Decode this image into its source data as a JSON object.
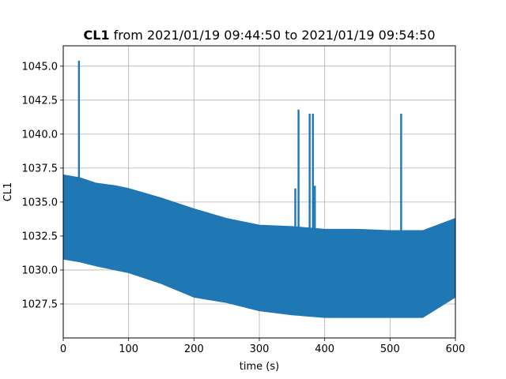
{
  "chart_data": {
    "type": "line",
    "title_bold": "CL1",
    "title_rest": " from 2021/01/19 09:44:50 to 2021/01/19 09:54:50",
    "xlabel": "time (s)",
    "ylabel": "CL1",
    "xlim": [
      0,
      600
    ],
    "ylim": [
      1025.0,
      1046.5
    ],
    "xticks": [
      0,
      100,
      200,
      300,
      400,
      500,
      600
    ],
    "xtick_labels": [
      "0",
      "100",
      "200",
      "300",
      "400",
      "500",
      "600"
    ],
    "yticks": [
      1027.5,
      1030.0,
      1032.5,
      1035.0,
      1037.5,
      1040.0,
      1042.5,
      1045.0
    ],
    "ytick_labels": [
      "1027.5",
      "1030.0",
      "1032.5",
      "1035.0",
      "1037.5",
      "1040.0",
      "1042.5",
      "1045.0"
    ],
    "grid": true,
    "series_color": "#1f77b4",
    "envelope": {
      "x": [
        0,
        25,
        50,
        80,
        100,
        150,
        200,
        250,
        300,
        350,
        400,
        450,
        500,
        550,
        600
      ],
      "upper": [
        1037.0,
        1036.8,
        1036.4,
        1036.2,
        1036.0,
        1035.3,
        1034.5,
        1033.8,
        1033.3,
        1033.2,
        1033.0,
        1033.0,
        1032.9,
        1032.9,
        1033.8
      ],
      "lower": [
        1030.8,
        1030.6,
        1030.3,
        1030.0,
        1029.8,
        1029.0,
        1028.0,
        1027.6,
        1027.0,
        1026.7,
        1026.5,
        1026.5,
        1026.5,
        1026.5,
        1028.0
      ]
    },
    "spikes": [
      {
        "x": 24,
        "y": 1045.4
      },
      {
        "x": 355,
        "y": 1036.0
      },
      {
        "x": 360,
        "y": 1041.8
      },
      {
        "x": 377,
        "y": 1041.5
      },
      {
        "x": 382,
        "y": 1041.5
      },
      {
        "x": 385,
        "y": 1036.2
      },
      {
        "x": 517,
        "y": 1041.5
      }
    ]
  }
}
